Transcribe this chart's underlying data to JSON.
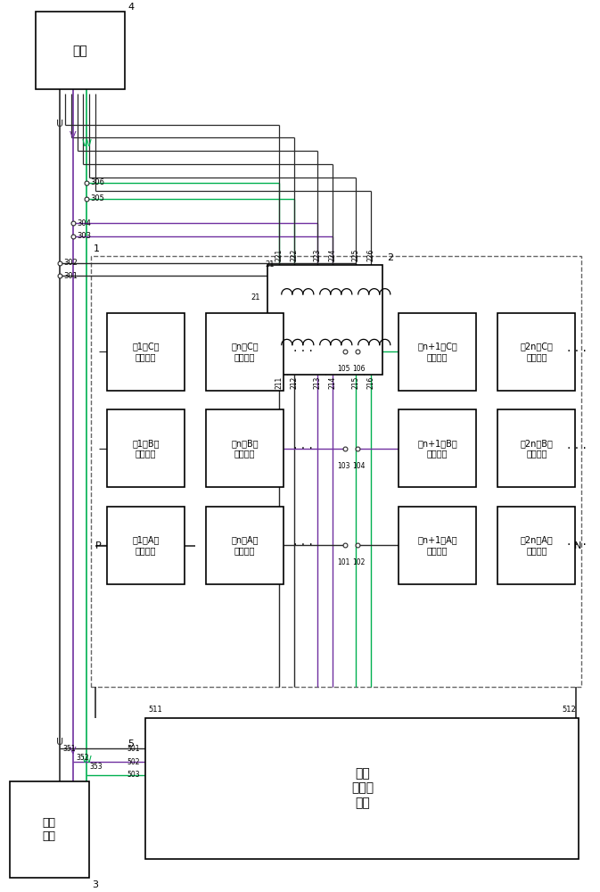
{
  "bg_color": "#ffffff",
  "load_box": {
    "xp": 38,
    "yp": 8,
    "wp": 100,
    "hp": 88,
    "label": "负载",
    "ref": "4"
  },
  "grid_box": {
    "xp": 8,
    "yp": 882,
    "wp": 90,
    "hp": 110,
    "label": "三相\n电网",
    "ref": "3"
  },
  "rectifier_box": {
    "xp": 162,
    "yp": 810,
    "wp": 490,
    "hp": 160,
    "label": "整流\n与储能\n单元"
  },
  "main_dashed_box": {
    "xp": 100,
    "yp": 285,
    "wp": 555,
    "hp": 490,
    "ref": "1"
  },
  "transformer_box": {
    "xp": 300,
    "yp": 295,
    "wp": 130,
    "hp": 125,
    "ref": "2"
  },
  "power_units": [
    {
      "xp": 118,
      "yp": 350,
      "wp": 88,
      "hp": 88,
      "label": "第1个C相\n功率单元"
    },
    {
      "xp": 230,
      "yp": 350,
      "wp": 88,
      "hp": 88,
      "label": "第n个C相\n功率单元"
    },
    {
      "xp": 118,
      "yp": 460,
      "wp": 88,
      "hp": 88,
      "label": "第1个B相\n功率单元"
    },
    {
      "xp": 230,
      "yp": 460,
      "wp": 88,
      "hp": 88,
      "label": "第n个B相\n功率单元"
    },
    {
      "xp": 118,
      "yp": 570,
      "wp": 88,
      "hp": 88,
      "label": "第1个A相\n功率单元"
    },
    {
      "xp": 230,
      "yp": 570,
      "wp": 88,
      "hp": 88,
      "label": "第n个A相\n功率单元"
    },
    {
      "xp": 448,
      "yp": 350,
      "wp": 88,
      "hp": 88,
      "label": "第n+1个C相\n功率单元"
    },
    {
      "xp": 560,
      "yp": 350,
      "wp": 88,
      "hp": 88,
      "label": "第2n个C相\n功率单元"
    },
    {
      "xp": 448,
      "yp": 460,
      "wp": 88,
      "hp": 88,
      "label": "第n+1个B相\n功率单元"
    },
    {
      "xp": 560,
      "yp": 460,
      "wp": 88,
      "hp": 88,
      "label": "第2n个B相\n功率单元"
    },
    {
      "xp": 448,
      "yp": 570,
      "wp": 88,
      "hp": 88,
      "label": "第n+1个A相\n功率单元"
    },
    {
      "xp": 560,
      "yp": 570,
      "wp": 88,
      "hp": 88,
      "label": "第2n个A相\n功率单元"
    }
  ],
  "wire_colors": {
    "black": "#2a2a2a",
    "purple": "#7030a0",
    "green": "#00b050",
    "blue": "#2e75b6",
    "gray": "#666666"
  }
}
